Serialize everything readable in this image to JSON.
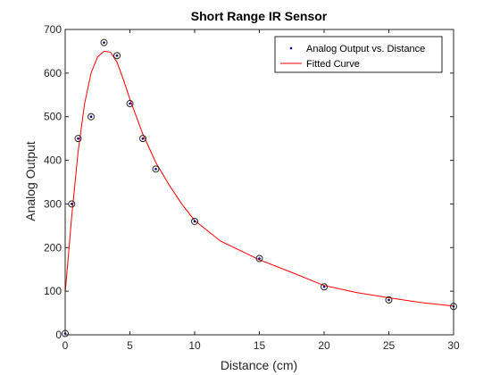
{
  "chart_data": {
    "type": "scatter",
    "title": "Short Range IR Sensor",
    "xlabel": "Distance (cm)",
    "ylabel": "Analog Output",
    "xlim": [
      0,
      30
    ],
    "ylim": [
      0,
      700
    ],
    "xticks": [
      0,
      5,
      10,
      15,
      20,
      25,
      30
    ],
    "yticks": [
      0,
      100,
      200,
      300,
      400,
      500,
      600,
      700
    ],
    "grid": false,
    "legend_position": "top-right",
    "series": [
      {
        "name": "Analog Output vs. Distance",
        "kind": "scatter",
        "marker_color": "#00008b",
        "x": [
          0,
          0.5,
          1,
          2,
          3,
          4,
          5,
          6,
          7,
          10,
          15,
          20,
          25,
          30
        ],
        "y": [
          3,
          300,
          450,
          500,
          670,
          640,
          530,
          450,
          380,
          260,
          175,
          110,
          80,
          65
        ]
      },
      {
        "name": "Fitted Curve",
        "kind": "line",
        "color": "#ff0000",
        "x": [
          0,
          0.5,
          1,
          1.5,
          2,
          2.5,
          3,
          3.5,
          4,
          4.5,
          5,
          6,
          7,
          8,
          9,
          10,
          12,
          15,
          17.5,
          20,
          22.5,
          25,
          27.5,
          30
        ],
        "y": [
          95,
          270,
          420,
          530,
          600,
          637,
          650,
          648,
          625,
          585,
          540,
          460,
          395,
          345,
          300,
          262,
          215,
          172,
          143,
          113,
          97,
          85,
          74,
          66
        ]
      }
    ]
  }
}
